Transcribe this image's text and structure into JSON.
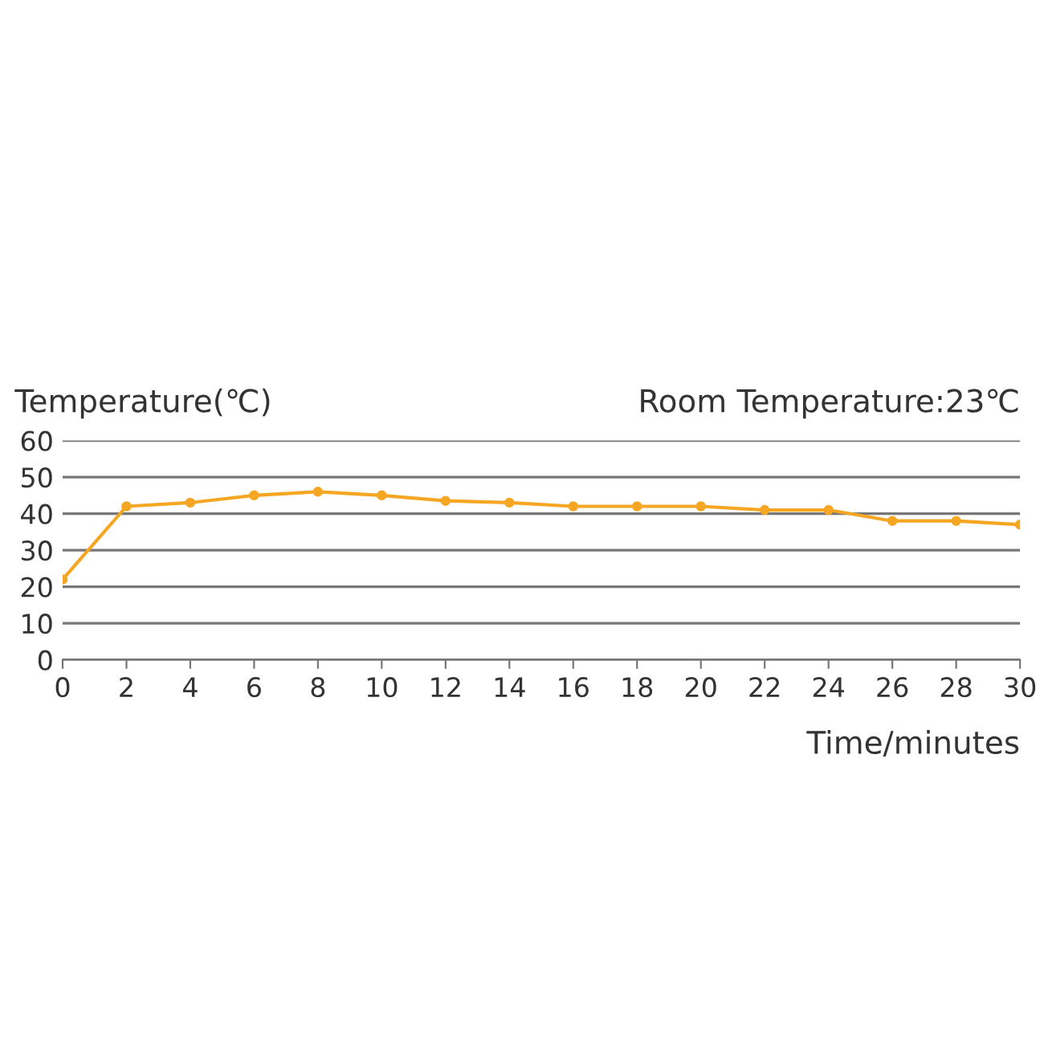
{
  "chart_data": {
    "type": "line",
    "ylabel": "Temperature(℃)",
    "xlabel": "Time/minutes",
    "annotations": [
      "Room Temperature:23℃"
    ],
    "x": [
      0,
      2,
      4,
      6,
      8,
      10,
      12,
      14,
      16,
      18,
      20,
      22,
      24,
      26,
      28,
      30
    ],
    "series": [
      {
        "color": "#f5a623",
        "values": [
          22,
          42,
          43,
          45,
          46,
          45,
          43.5,
          43,
          42,
          42,
          42,
          41,
          41,
          38,
          38,
          37
        ]
      }
    ],
    "xlim": [
      0,
      30
    ],
    "xticks": [
      0,
      2,
      4,
      6,
      8,
      10,
      12,
      14,
      16,
      18,
      20,
      22,
      24,
      26,
      28,
      30
    ],
    "ylim": [
      0,
      60
    ],
    "yticks": [
      0,
      10,
      20,
      30,
      40,
      50,
      60
    ],
    "grid": "y",
    "marker": "circle",
    "line_style": "solid"
  }
}
